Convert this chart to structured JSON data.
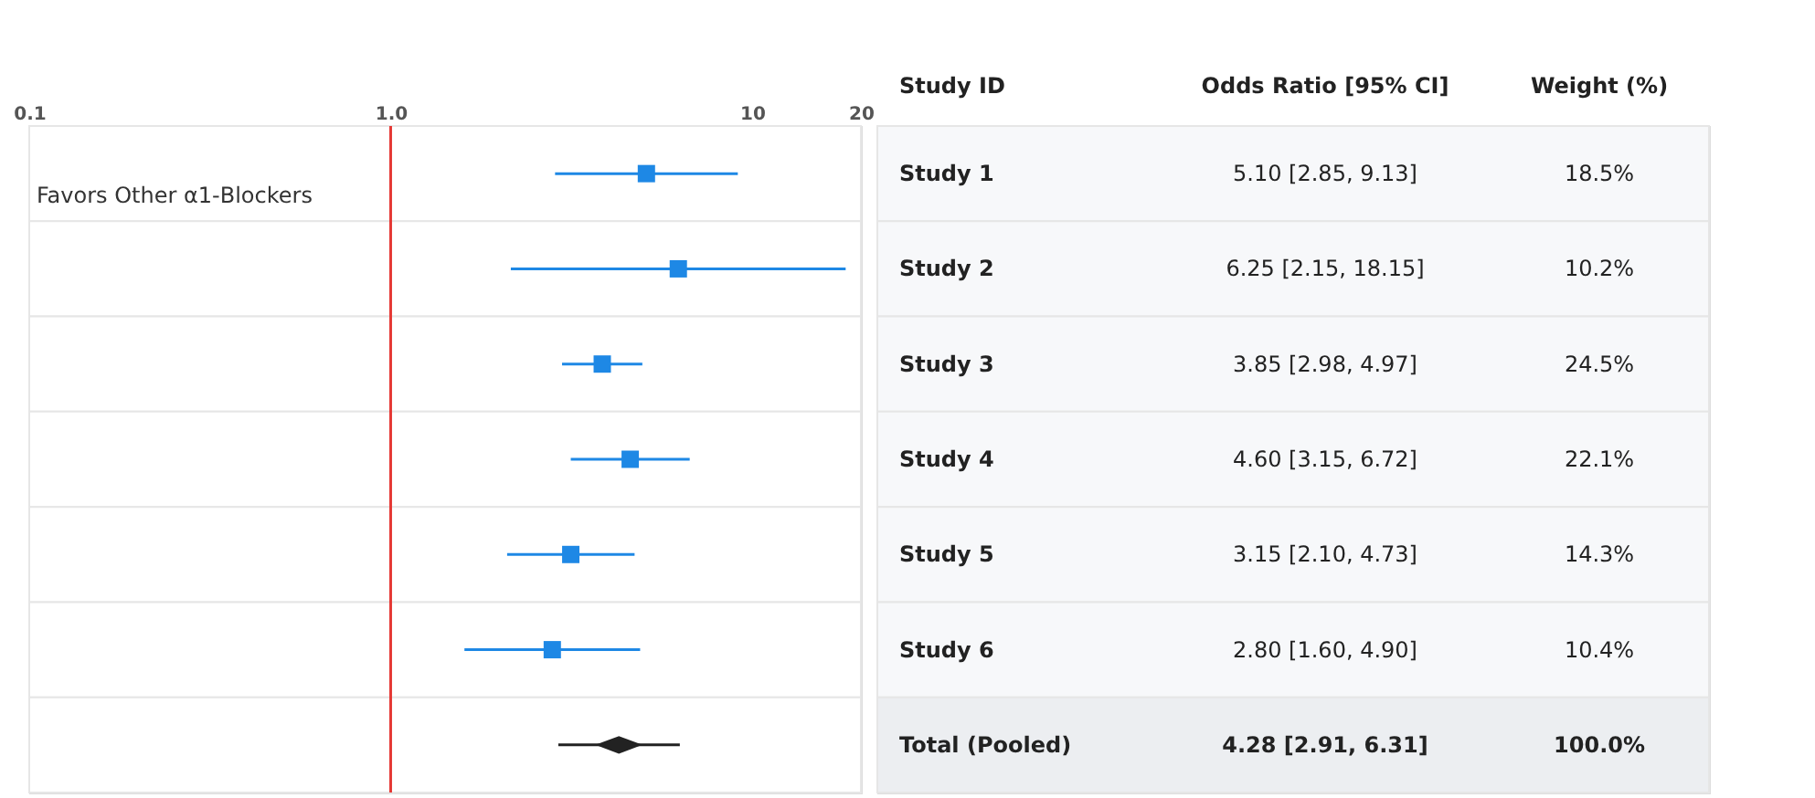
{
  "chart_data": {
    "type": "scatter",
    "log": "x",
    "orientation": "horizontal",
    "categories": [
      "Study 1",
      "Study 2",
      "Study 3",
      "Study 4",
      "Study 5",
      "Study 6",
      "Total (Pooled)"
    ],
    "ylabel": "Study ID",
    "series": [
      {
        "marker": "square",
        "color": "#1e88e5",
        "values": [
          5.1,
          6.25,
          3.85,
          4.6,
          3.15,
          2.8,
          null
        ],
        "errors": [
          [
            2.85,
            9.13
          ],
          [
            2.15,
            18.15
          ],
          [
            2.98,
            4.97
          ],
          [
            3.15,
            6.72
          ],
          [
            2.1,
            4.73
          ],
          [
            1.6,
            4.9
          ],
          null
        ],
        "value_labels": [
          "5.10 [2.85, 9.13]",
          "6.25 [2.15, 18.15]",
          "3.85 [2.98, 4.97]",
          "4.60 [3.15, 6.72]",
          "3.15 [2.10, 4.73]",
          "2.80 [1.60, 4.90]",
          null
        ]
      },
      {
        "marker": "diamond",
        "color": "#222222",
        "values": [
          null,
          null,
          null,
          null,
          null,
          null,
          4.28
        ],
        "errors": [
          null,
          null,
          null,
          null,
          null,
          null,
          [
            2.91,
            6.31
          ]
        ]
      }
    ],
    "xlim": [
      0.1,
      20
    ],
    "xticks": [
      {
        "value": 0.1,
        "label": "0.1"
      },
      {
        "value": 1,
        "label": "1.0"
      },
      {
        "value": 10,
        "label": "10"
      },
      {
        "value": 20,
        "label": "20"
      }
    ],
    "ref_lines": [
      {
        "axis": "x",
        "value": 1,
        "color": "#e53935"
      }
    ],
    "annotations": [
      "Favors Other α1-Blockers",
      "Odds Ratio [95% CI]",
      "Weight (%)",
      "18.5%",
      "10.2%",
      "24.5%",
      "22.1%",
      "14.3%",
      "10.4%",
      "100.0%",
      "4.28 [2.91, 6.31]"
    ]
  }
}
